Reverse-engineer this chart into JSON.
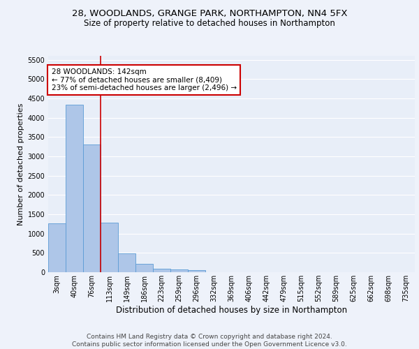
{
  "title1": "28, WOODLANDS, GRANGE PARK, NORTHAMPTON, NN4 5FX",
  "title2": "Size of property relative to detached houses in Northampton",
  "xlabel": "Distribution of detached houses by size in Northampton",
  "ylabel": "Number of detached properties",
  "footer1": "Contains HM Land Registry data © Crown copyright and database right 2024.",
  "footer2": "Contains public sector information licensed under the Open Government Licence v3.0.",
  "annotation_line1": "28 WOODLANDS: 142sqm",
  "annotation_line2": "← 77% of detached houses are smaller (8,409)",
  "annotation_line3": "23% of semi-detached houses are larger (2,496) →",
  "bar_values": [
    1270,
    4330,
    3300,
    1280,
    490,
    215,
    90,
    70,
    60,
    0,
    0,
    0,
    0,
    0,
    0,
    0,
    0,
    0,
    0,
    0,
    0
  ],
  "bar_color": "#aec6e8",
  "bar_edge_color": "#5b9bd5",
  "categories": [
    "3sqm",
    "40sqm",
    "76sqm",
    "113sqm",
    "149sqm",
    "186sqm",
    "223sqm",
    "259sqm",
    "296sqm",
    "332sqm",
    "369sqm",
    "406sqm",
    "442sqm",
    "479sqm",
    "515sqm",
    "552sqm",
    "589sqm",
    "625sqm",
    "662sqm",
    "698sqm",
    "735sqm"
  ],
  "ylim": [
    0,
    5600
  ],
  "yticks": [
    0,
    500,
    1000,
    1500,
    2000,
    2500,
    3000,
    3500,
    4000,
    4500,
    5000,
    5500
  ],
  "vline_x": 3.0,
  "vline_color": "#cc0000",
  "bg_color": "#e8eef8",
  "grid_color": "#ffffff",
  "title1_fontsize": 9.5,
  "title2_fontsize": 8.5,
  "xlabel_fontsize": 8.5,
  "ylabel_fontsize": 8,
  "tick_fontsize": 7,
  "footer_fontsize": 6.5,
  "annotation_fontsize": 7.5
}
